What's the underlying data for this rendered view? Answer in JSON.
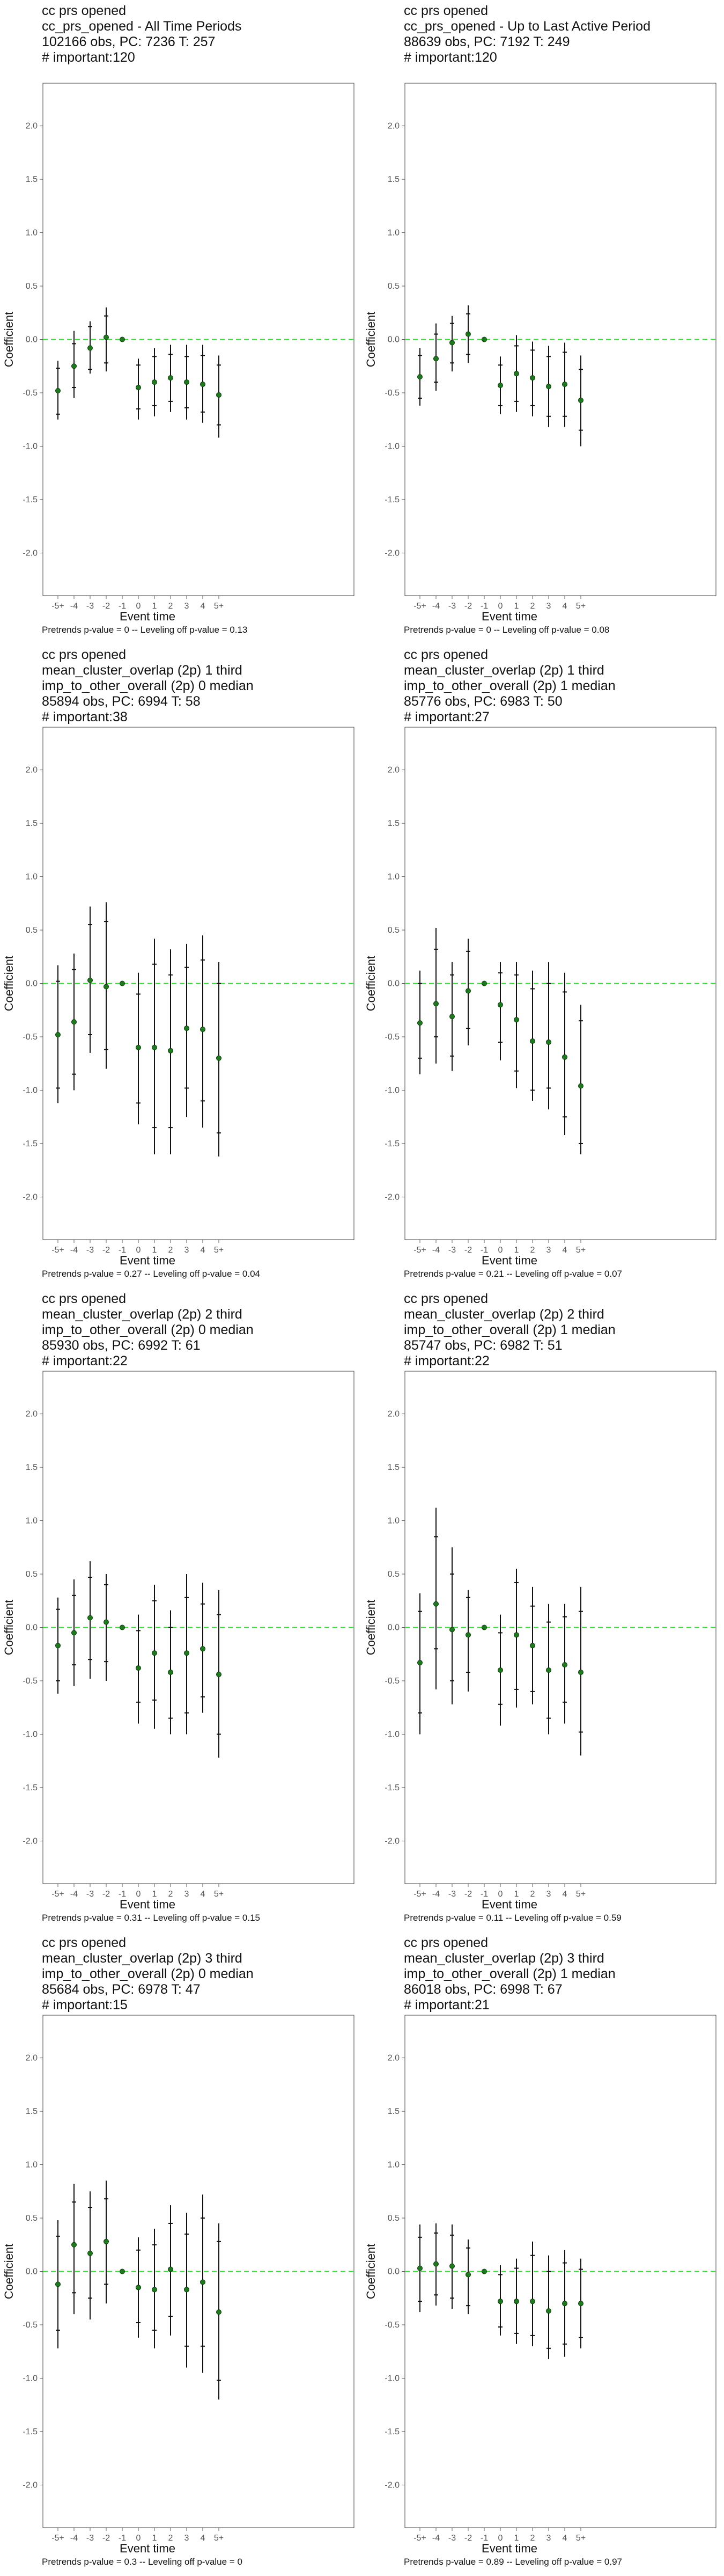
{
  "shared": {
    "xlabel": "Event time",
    "ylabel": "Coefficient",
    "xticks": [
      "-5+",
      "-4",
      "-3",
      "-2",
      "-1",
      "0",
      "1",
      "2",
      "3",
      "4",
      "5+"
    ],
    "yticks": [
      "-2.0",
      "-1.5",
      "-1.0",
      "-0.5",
      "0.0",
      "0.5",
      "1.0",
      "1.5",
      "2.0"
    ],
    "ylim": [
      -2.4,
      2.4
    ],
    "point_color": "#1f7a1f",
    "zero_line_color": "#33dd33"
  },
  "chart_data": [
    {
      "type": "scatter",
      "title_lines": [
        "cc prs opened",
        "cc_prs_opened - All Time Periods",
        "102166 obs, PC: 7236 T: 257",
        "# important:120"
      ],
      "footer": "Pretrends p-value = 0 -- Leveling off p-value = 0.13",
      "x": [
        "-5+",
        "-4",
        "-3",
        "-2",
        "-1",
        "0",
        "1",
        "2",
        "3",
        "4",
        "5+"
      ],
      "y": [
        -0.48,
        -0.25,
        -0.08,
        0.02,
        0.0,
        -0.45,
        -0.4,
        -0.36,
        -0.4,
        -0.42,
        -0.52
      ],
      "ci95": [
        [
          -0.75,
          -0.2
        ],
        [
          -0.55,
          0.08
        ],
        [
          -0.32,
          0.17
        ],
        [
          -0.3,
          0.3
        ],
        [
          0.0,
          0.0
        ],
        [
          -0.75,
          -0.18
        ],
        [
          -0.72,
          -0.08
        ],
        [
          -0.68,
          -0.05
        ],
        [
          -0.75,
          -0.05
        ],
        [
          -0.78,
          -0.05
        ],
        [
          -0.92,
          -0.15
        ]
      ],
      "ci90": [
        [
          -0.7,
          -0.27
        ],
        [
          -0.45,
          -0.04
        ],
        [
          -0.28,
          0.12
        ],
        [
          -0.22,
          0.22
        ],
        [
          0.0,
          0.0
        ],
        [
          -0.65,
          -0.24
        ],
        [
          -0.62,
          -0.16
        ],
        [
          -0.58,
          -0.14
        ],
        [
          -0.64,
          -0.16
        ],
        [
          -0.68,
          -0.15
        ],
        [
          -0.8,
          -0.24
        ]
      ]
    },
    {
      "type": "scatter",
      "title_lines": [
        "cc prs opened",
        "cc_prs_opened - Up to Last Active Period",
        "88639 obs, PC: 7192 T: 249",
        "# important:120"
      ],
      "footer": "Pretrends p-value = 0 -- Leveling off p-value = 0.08",
      "x": [
        "-5+",
        "-4",
        "-3",
        "-2",
        "-1",
        "0",
        "1",
        "2",
        "3",
        "4",
        "5+"
      ],
      "y": [
        -0.35,
        -0.18,
        -0.03,
        0.05,
        0.0,
        -0.43,
        -0.32,
        -0.36,
        -0.44,
        -0.42,
        -0.57
      ],
      "ci95": [
        [
          -0.62,
          -0.08
        ],
        [
          -0.48,
          0.15
        ],
        [
          -0.3,
          0.22
        ],
        [
          -0.22,
          0.32
        ],
        [
          0.0,
          0.0
        ],
        [
          -0.7,
          -0.16
        ],
        [
          -0.68,
          0.04
        ],
        [
          -0.72,
          -0.02
        ],
        [
          -0.82,
          -0.06
        ],
        [
          -0.82,
          -0.03
        ],
        [
          -1.0,
          -0.15
        ]
      ],
      "ci90": [
        [
          -0.55,
          -0.15
        ],
        [
          -0.4,
          0.05
        ],
        [
          -0.22,
          0.15
        ],
        [
          -0.14,
          0.24
        ],
        [
          0.0,
          0.0
        ],
        [
          -0.62,
          -0.24
        ],
        [
          -0.58,
          -0.06
        ],
        [
          -0.62,
          -0.1
        ],
        [
          -0.72,
          -0.16
        ],
        [
          -0.72,
          -0.12
        ],
        [
          -0.85,
          -0.28
        ]
      ]
    },
    {
      "type": "scatter",
      "title_lines": [
        "cc prs opened",
        "mean_cluster_overlap (2p) 1 third",
        "imp_to_other_overall (2p) 0 median",
        "85894 obs, PC: 6994 T: 58",
        "# important:38"
      ],
      "footer": "Pretrends p-value = 0.27 -- Leveling off p-value = 0.04",
      "x": [
        "-5+",
        "-4",
        "-3",
        "-2",
        "-1",
        "0",
        "1",
        "2",
        "3",
        "4",
        "5+"
      ],
      "y": [
        -0.48,
        -0.36,
        0.03,
        -0.03,
        0.0,
        -0.6,
        -0.6,
        -0.63,
        -0.42,
        -0.43,
        -0.7
      ],
      "ci95": [
        [
          -1.12,
          0.17
        ],
        [
          -1.0,
          0.28
        ],
        [
          -0.65,
          0.72
        ],
        [
          -0.8,
          0.76
        ],
        [
          0.0,
          0.0
        ],
        [
          -1.32,
          0.1
        ],
        [
          -1.6,
          0.42
        ],
        [
          -1.6,
          0.32
        ],
        [
          -1.25,
          0.37
        ],
        [
          -1.35,
          0.45
        ],
        [
          -1.62,
          0.2
        ]
      ],
      "ci90": [
        [
          -0.98,
          0.02
        ],
        [
          -0.85,
          0.13
        ],
        [
          -0.48,
          0.55
        ],
        [
          -0.62,
          0.58
        ],
        [
          0.0,
          0.0
        ],
        [
          -1.12,
          -0.1
        ],
        [
          -1.35,
          0.18
        ],
        [
          -1.35,
          0.08
        ],
        [
          -0.98,
          0.15
        ],
        [
          -1.1,
          0.22
        ],
        [
          -1.4,
          0.0
        ]
      ]
    },
    {
      "type": "scatter",
      "title_lines": [
        "cc prs opened",
        "mean_cluster_overlap (2p) 1 third",
        "imp_to_other_overall (2p) 1 median",
        "85776 obs, PC: 6983 T: 50",
        "# important:27"
      ],
      "footer": "Pretrends p-value = 0.21 -- Leveling off p-value = 0.07",
      "x": [
        "-5+",
        "-4",
        "-3",
        "-2",
        "-1",
        "0",
        "1",
        "2",
        "3",
        "4",
        "5+"
      ],
      "y": [
        -0.37,
        -0.19,
        -0.31,
        -0.07,
        0.0,
        -0.2,
        -0.34,
        -0.54,
        -0.55,
        -0.69,
        -0.96
      ],
      "ci95": [
        [
          -0.85,
          0.12
        ],
        [
          -0.75,
          0.52
        ],
        [
          -0.82,
          0.2
        ],
        [
          -0.58,
          0.42
        ],
        [
          0.0,
          0.0
        ],
        [
          -0.72,
          0.2
        ],
        [
          -0.98,
          0.2
        ],
        [
          -1.1,
          0.12
        ],
        [
          -1.18,
          0.2
        ],
        [
          -1.42,
          0.1
        ],
        [
          -1.6,
          -0.2
        ]
      ],
      "ci90": [
        [
          -0.7,
          0.0
        ],
        [
          -0.5,
          0.32
        ],
        [
          -0.68,
          0.08
        ],
        [
          -0.42,
          0.3
        ],
        [
          0.0,
          0.0
        ],
        [
          -0.55,
          0.1
        ],
        [
          -0.82,
          0.08
        ],
        [
          -1.0,
          -0.05
        ],
        [
          -0.98,
          0.0
        ],
        [
          -1.25,
          -0.08
        ],
        [
          -1.5,
          -0.35
        ]
      ]
    },
    {
      "type": "scatter",
      "title_lines": [
        "cc prs opened",
        "mean_cluster_overlap (2p) 2 third",
        "imp_to_other_overall (2p) 0 median",
        "85930 obs, PC: 6992 T: 61",
        "# important:22"
      ],
      "footer": "Pretrends p-value = 0.31 -- Leveling off p-value = 0.15",
      "x": [
        "-5+",
        "-4",
        "-3",
        "-2",
        "-1",
        "0",
        "1",
        "2",
        "3",
        "4",
        "5+"
      ],
      "y": [
        -0.17,
        -0.05,
        0.09,
        0.05,
        0.0,
        -0.38,
        -0.24,
        -0.42,
        -0.24,
        -0.2,
        -0.44
      ],
      "ci95": [
        [
          -0.62,
          0.28
        ],
        [
          -0.55,
          0.45
        ],
        [
          -0.48,
          0.62
        ],
        [
          -0.5,
          0.5
        ],
        [
          0.0,
          0.0
        ],
        [
          -0.9,
          0.12
        ],
        [
          -0.95,
          0.4
        ],
        [
          -1.0,
          0.16
        ],
        [
          -1.0,
          0.5
        ],
        [
          -0.8,
          0.42
        ],
        [
          -1.22,
          0.35
        ]
      ],
      "ci90": [
        [
          -0.5,
          0.17
        ],
        [
          -0.35,
          0.3
        ],
        [
          -0.3,
          0.47
        ],
        [
          -0.32,
          0.4
        ],
        [
          0.0,
          0.0
        ],
        [
          -0.7,
          -0.03
        ],
        [
          -0.68,
          0.25
        ],
        [
          -0.85,
          0.0
        ],
        [
          -0.8,
          0.28
        ],
        [
          -0.65,
          0.22
        ],
        [
          -1.0,
          0.12
        ]
      ]
    },
    {
      "type": "scatter",
      "title_lines": [
        "cc prs opened",
        "mean_cluster_overlap (2p) 2 third",
        "imp_to_other_overall (2p) 1 median",
        "85747 obs, PC: 6982 T: 51",
        "# important:22"
      ],
      "footer": "Pretrends p-value = 0.11 -- Leveling off p-value = 0.59",
      "x": [
        "-5+",
        "-4",
        "-3",
        "-2",
        "-1",
        "0",
        "1",
        "2",
        "3",
        "4",
        "5+"
      ],
      "y": [
        -0.33,
        0.22,
        -0.02,
        -0.07,
        0.0,
        -0.4,
        -0.07,
        -0.17,
        -0.4,
        -0.35,
        -0.42
      ],
      "ci95": [
        [
          -1.0,
          0.32
        ],
        [
          -0.58,
          1.12
        ],
        [
          -0.72,
          0.75
        ],
        [
          -0.6,
          0.35
        ],
        [
          0.0,
          0.0
        ],
        [
          -0.92,
          0.12
        ],
        [
          -0.75,
          0.55
        ],
        [
          -0.72,
          0.38
        ],
        [
          -1.0,
          0.22
        ],
        [
          -0.9,
          0.22
        ],
        [
          -1.2,
          0.38
        ]
      ],
      "ci90": [
        [
          -0.8,
          0.15
        ],
        [
          -0.2,
          0.85
        ],
        [
          -0.5,
          0.5
        ],
        [
          -0.42,
          0.28
        ],
        [
          0.0,
          0.0
        ],
        [
          -0.72,
          -0.05
        ],
        [
          -0.58,
          0.42
        ],
        [
          -0.6,
          0.2
        ],
        [
          -0.85,
          0.05
        ],
        [
          -0.7,
          0.1
        ],
        [
          -0.98,
          0.15
        ]
      ]
    },
    {
      "type": "scatter",
      "title_lines": [
        "cc prs opened",
        "mean_cluster_overlap (2p) 3 third",
        "imp_to_other_overall (2p) 0 median",
        "85684 obs, PC: 6978 T: 47",
        "# important:15"
      ],
      "footer": "Pretrends p-value = 0.3 -- Leveling off p-value = 0",
      "x": [
        "-5+",
        "-4",
        "-3",
        "-2",
        "-1",
        "0",
        "1",
        "2",
        "3",
        "4",
        "5+"
      ],
      "y": [
        -0.12,
        0.25,
        0.17,
        0.28,
        0.0,
        -0.15,
        -0.17,
        0.02,
        -0.17,
        -0.1,
        -0.38
      ],
      "ci95": [
        [
          -0.72,
          0.48
        ],
        [
          -0.4,
          0.82
        ],
        [
          -0.45,
          0.75
        ],
        [
          -0.3,
          0.85
        ],
        [
          0.0,
          0.0
        ],
        [
          -0.62,
          0.32
        ],
        [
          -0.72,
          0.4
        ],
        [
          -0.6,
          0.62
        ],
        [
          -0.9,
          0.55
        ],
        [
          -0.95,
          0.72
        ],
        [
          -1.2,
          0.45
        ]
      ],
      "ci90": [
        [
          -0.55,
          0.33
        ],
        [
          -0.2,
          0.65
        ],
        [
          -0.25,
          0.6
        ],
        [
          -0.12,
          0.68
        ],
        [
          0.0,
          0.0
        ],
        [
          -0.48,
          0.2
        ],
        [
          -0.55,
          0.25
        ],
        [
          -0.42,
          0.45
        ],
        [
          -0.7,
          0.35
        ],
        [
          -0.7,
          0.5
        ],
        [
          -1.02,
          0.28
        ]
      ]
    },
    {
      "type": "scatter",
      "title_lines": [
        "cc prs opened",
        "mean_cluster_overlap (2p) 3 third",
        "imp_to_other_overall (2p) 1 median",
        "86018 obs, PC: 6998 T: 67",
        "# important:21"
      ],
      "footer": "Pretrends p-value = 0.89 -- Leveling off p-value = 0.97",
      "x": [
        "-5+",
        "-4",
        "-3",
        "-2",
        "-1",
        "0",
        "1",
        "2",
        "3",
        "4",
        "5+"
      ],
      "y": [
        0.03,
        0.07,
        0.05,
        -0.03,
        0.0,
        -0.28,
        -0.28,
        -0.28,
        -0.37,
        -0.3,
        -0.3
      ],
      "ci95": [
        [
          -0.38,
          0.44
        ],
        [
          -0.32,
          0.45
        ],
        [
          -0.35,
          0.44
        ],
        [
          -0.4,
          0.3
        ],
        [
          0.0,
          0.0
        ],
        [
          -0.6,
          0.06
        ],
        [
          -0.68,
          0.12
        ],
        [
          -0.7,
          0.28
        ],
        [
          -0.82,
          0.15
        ],
        [
          -0.8,
          0.2
        ],
        [
          -0.72,
          0.12
        ]
      ],
      "ci90": [
        [
          -0.28,
          0.32
        ],
        [
          -0.22,
          0.36
        ],
        [
          -0.25,
          0.34
        ],
        [
          -0.32,
          0.22
        ],
        [
          0.0,
          0.0
        ],
        [
          -0.52,
          -0.03
        ],
        [
          -0.58,
          0.03
        ],
        [
          -0.6,
          0.15
        ],
        [
          -0.72,
          0.0
        ],
        [
          -0.68,
          0.08
        ],
        [
          -0.62,
          0.02
        ]
      ]
    }
  ]
}
